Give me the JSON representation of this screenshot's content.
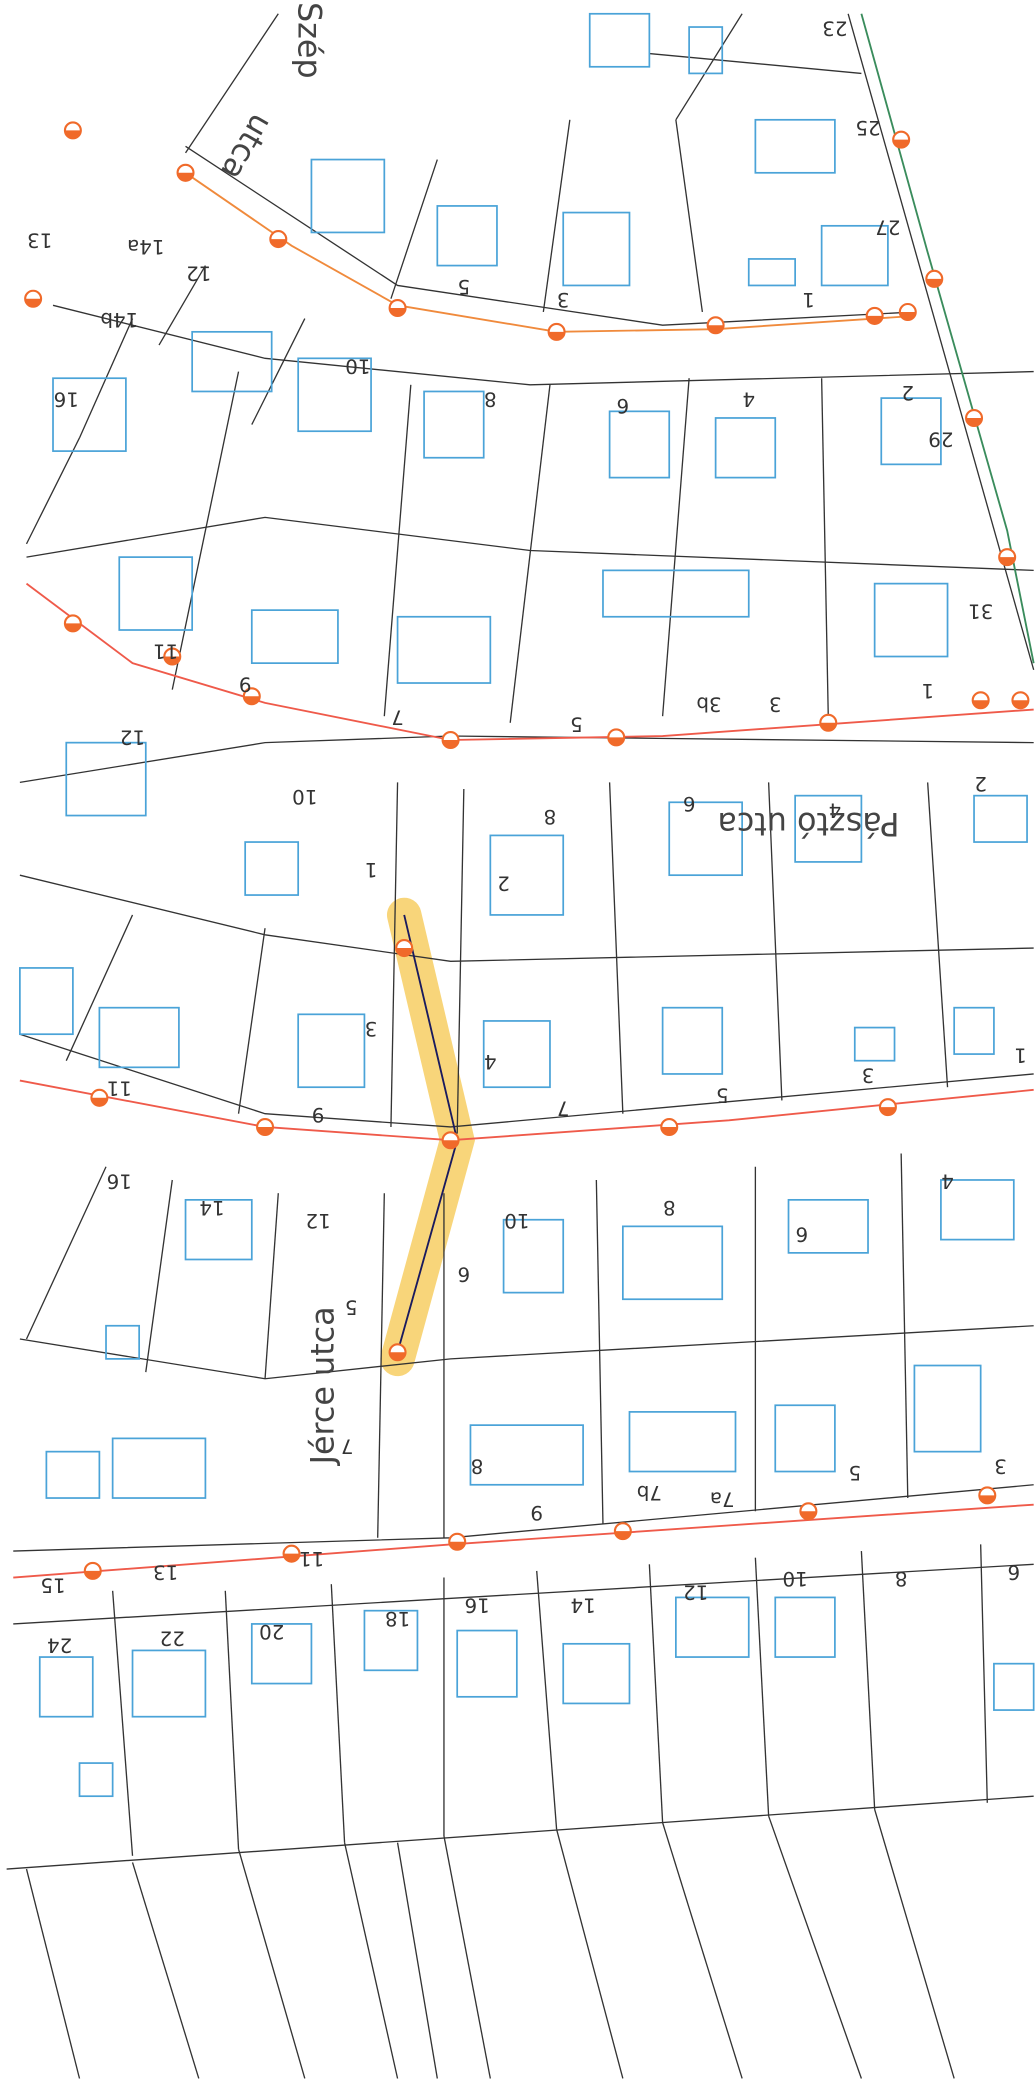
{
  "labels": {
    "house_numbers": [
      "23",
      "25",
      "27",
      "29",
      "31",
      "1",
      "3",
      "5",
      "12",
      "14a",
      "14b",
      "13",
      "16",
      "10",
      "8",
      "6",
      "4",
      "2",
      "11",
      "9",
      "7",
      "5",
      "3b",
      "3",
      "1",
      "12",
      "10",
      "8",
      "6",
      "4",
      "2",
      "1",
      "2",
      "3",
      "4",
      "11",
      "9",
      "7",
      "5",
      "3",
      "1",
      "16",
      "14",
      "12",
      "10",
      "8",
      "6",
      "4",
      "6",
      "5",
      "8",
      "9",
      "7",
      "11",
      "13",
      "15",
      "7b",
      "7a",
      "5",
      "3",
      "24",
      "22",
      "20",
      "18",
      "16",
      "14",
      "12",
      "10",
      "8",
      "6"
    ],
    "streets": [
      "Pásztó utca",
      "Jérce utca",
      "utca",
      "Szép"
    ]
  }
}
